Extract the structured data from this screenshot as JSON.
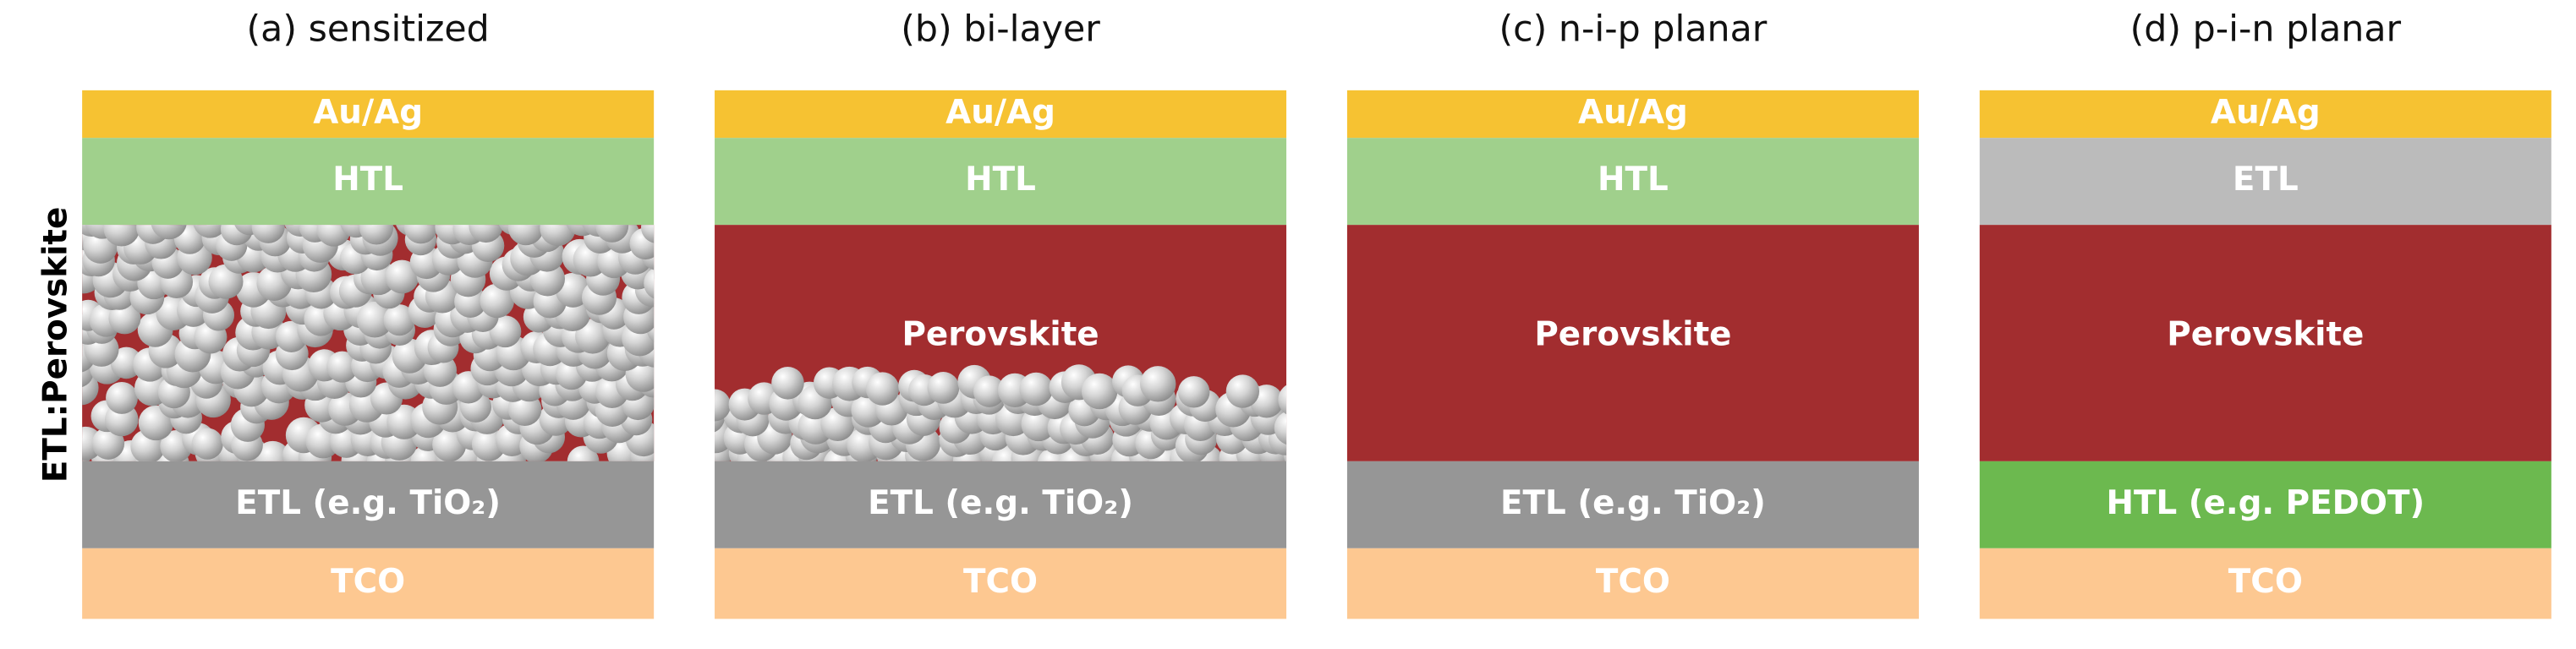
{
  "side_label": "ETL:Perovskite",
  "panels": [
    {
      "title": "(a) sensitized",
      "layers": [
        "Au/Ag",
        "HTL",
        "ETL (e.g. TiO₂)",
        "TCO"
      ]
    },
    {
      "title": "(b) bi-layer",
      "layers": [
        "Au/Ag",
        "HTL",
        "Perovskite",
        "ETL (e.g. TiO₂)",
        "TCO"
      ]
    },
    {
      "title": "(c) n-i-p planar",
      "layers": [
        "Au/Ag",
        "HTL",
        "Perovskite",
        "ETL (e.g. TiO₂)",
        "TCO"
      ]
    },
    {
      "title": "(d) p-i-n planar",
      "layers": [
        "Au/Ag",
        "ETL",
        "Perovskite",
        "HTL (e.g. PEDOT)",
        "TCO"
      ]
    }
  ]
}
